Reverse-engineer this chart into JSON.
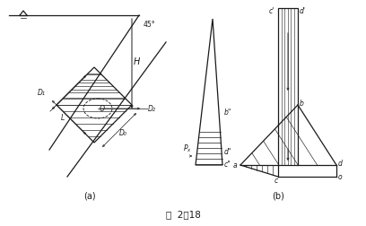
{
  "fig_label": "图 2-18",
  "sub_a": "(a)",
  "sub_b": "(b)",
  "line_color": "#1a1a1a",
  "angle_label": "45°",
  "H_label": "H",
  "D1_label": "D₁",
  "D2_label": "D₂",
  "D0_label": "D₀",
  "L_label": "L",
  "O_label": "O",
  "Px_label": "P",
  "labels_b_right": [
    "a",
    "b",
    "c",
    "d",
    "o",
    "c'",
    "d'"
  ],
  "labels_b_left": [
    "b\"",
    "c\"",
    "d\""
  ]
}
